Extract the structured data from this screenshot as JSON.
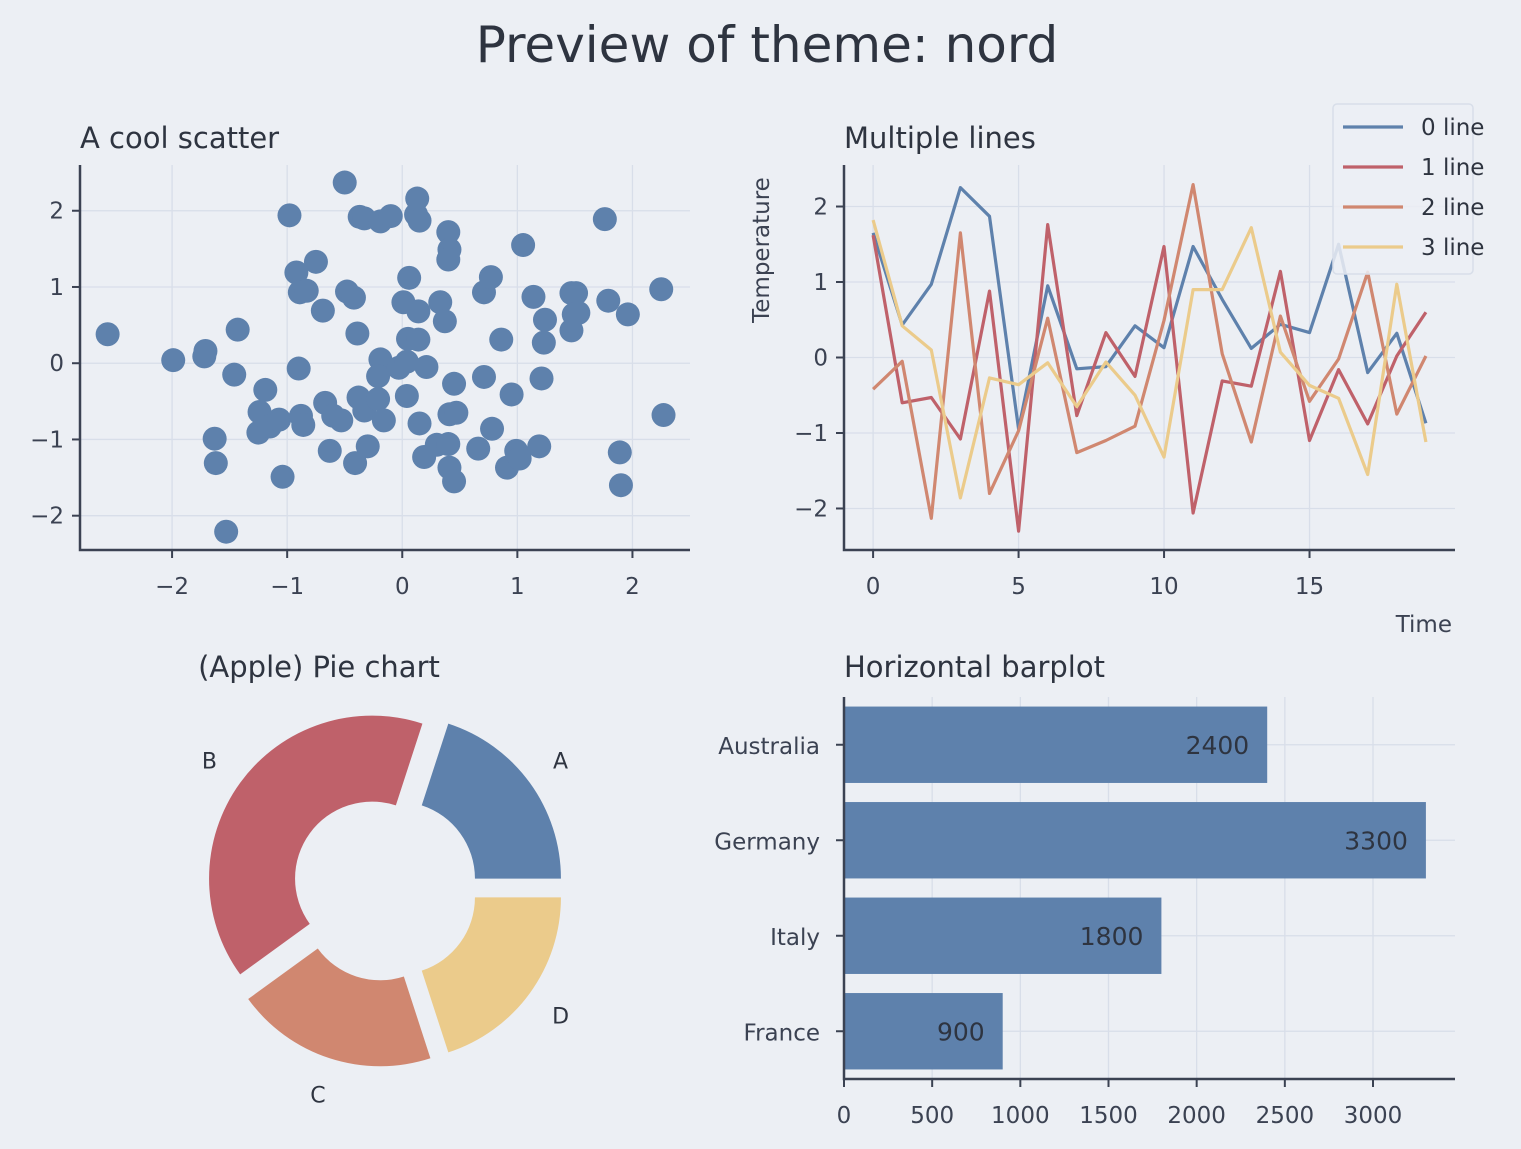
{
  "figure": {
    "title": "Preview of theme: nord"
  },
  "colors": {
    "background": "#eceff4",
    "text": "#2e3440",
    "grid": "#d8dee9",
    "series": [
      "#5e81ac",
      "#bf616a",
      "#d08770",
      "#ebcb8b"
    ]
  },
  "chart_data": [
    {
      "type": "scatter",
      "title": "A cool scatter",
      "xlabel": "",
      "ylabel": "",
      "xlim": [
        -2.8,
        2.5
      ],
      "ylim": [
        -2.45,
        2.6
      ],
      "xticks": [
        -2,
        -1,
        0,
        1,
        2
      ],
      "yticks": [
        -2,
        -1,
        0,
        1,
        2
      ],
      "grid": true,
      "points": [
        [
          -2.56,
          0.38
        ],
        [
          -1.99,
          0.04
        ],
        [
          -1.72,
          0.09
        ],
        [
          -1.71,
          0.16
        ],
        [
          -1.43,
          0.44
        ],
        [
          -1.46,
          -0.15
        ],
        [
          -1.63,
          -0.99
        ],
        [
          -1.62,
          -1.31
        ],
        [
          -1.53,
          -2.21
        ],
        [
          -1.04,
          -1.49
        ],
        [
          -1.19,
          -0.35
        ],
        [
          -1.24,
          -0.64
        ],
        [
          -1.25,
          -0.91
        ],
        [
          -1.15,
          -0.83
        ],
        [
          -1.07,
          -0.74
        ],
        [
          -0.98,
          1.94
        ],
        [
          -0.92,
          1.19
        ],
        [
          -0.89,
          0.93
        ],
        [
          -0.83,
          0.95
        ],
        [
          -0.75,
          1.33
        ],
        [
          -0.69,
          0.69
        ],
        [
          -0.9,
          -0.07
        ],
        [
          -0.88,
          -0.69
        ],
        [
          -0.86,
          -0.81
        ],
        [
          -0.67,
          -0.52
        ],
        [
          -0.6,
          -0.69
        ],
        [
          -0.53,
          -0.75
        ],
        [
          -0.63,
          -1.15
        ],
        [
          -0.5,
          2.37
        ],
        [
          -0.48,
          0.94
        ],
        [
          -0.42,
          0.86
        ],
        [
          -0.39,
          0.39
        ],
        [
          -0.37,
          1.92
        ],
        [
          -0.33,
          1.9
        ],
        [
          -0.19,
          1.86
        ],
        [
          -0.1,
          1.93
        ],
        [
          0.13,
          2.16
        ],
        [
          0.12,
          1.95
        ],
        [
          0.15,
          1.87
        ],
        [
          0.4,
          1.72
        ],
        [
          0.41,
          1.49
        ],
        [
          0.4,
          1.36
        ],
        [
          0.06,
          1.12
        ],
        [
          0.01,
          0.8
        ],
        [
          0.14,
          0.68
        ],
        [
          0.33,
          0.8
        ],
        [
          0.37,
          0.55
        ],
        [
          0.05,
          0.32
        ],
        [
          0.14,
          0.31
        ],
        [
          -0.19,
          0.05
        ],
        [
          -0.21,
          -0.17
        ],
        [
          -0.03,
          -0.06
        ],
        [
          0.04,
          0.02
        ],
        [
          0.21,
          -0.05
        ],
        [
          0.45,
          -0.27
        ],
        [
          -0.38,
          -0.45
        ],
        [
          -0.33,
          -0.62
        ],
        [
          -0.21,
          -0.47
        ],
        [
          -0.16,
          -0.75
        ],
        [
          -0.3,
          -1.09
        ],
        [
          -0.41,
          -1.31
        ],
        [
          0.04,
          -0.43
        ],
        [
          0.15,
          -0.79
        ],
        [
          0.19,
          -1.23
        ],
        [
          0.3,
          -1.07
        ],
        [
          0.4,
          -1.06
        ],
        [
          0.41,
          -1.37
        ],
        [
          0.45,
          -1.55
        ],
        [
          0.41,
          -0.67
        ],
        [
          0.47,
          -0.65
        ],
        [
          0.71,
          -0.18
        ],
        [
          0.71,
          0.93
        ],
        [
          0.77,
          1.13
        ],
        [
          0.86,
          0.31
        ],
        [
          0.78,
          -0.86
        ],
        [
          0.66,
          -1.12
        ],
        [
          0.95,
          -0.41
        ],
        [
          0.91,
          -1.37
        ],
        [
          0.99,
          -1.15
        ],
        [
          1.02,
          -1.25
        ],
        [
          1.05,
          1.55
        ],
        [
          1.14,
          0.87
        ],
        [
          1.24,
          0.57
        ],
        [
          1.23,
          0.27
        ],
        [
          1.21,
          -0.2
        ],
        [
          1.19,
          -1.09
        ],
        [
          1.47,
          0.92
        ],
        [
          1.51,
          0.92
        ],
        [
          1.49,
          0.64
        ],
        [
          1.53,
          0.66
        ],
        [
          1.47,
          0.43
        ],
        [
          1.76,
          1.89
        ],
        [
          1.79,
          0.82
        ],
        [
          1.96,
          0.64
        ],
        [
          1.89,
          -1.17
        ],
        [
          1.9,
          -1.6
        ],
        [
          2.25,
          0.97
        ],
        [
          2.27,
          -0.68
        ]
      ]
    },
    {
      "type": "line",
      "title": "Multiple lines",
      "xlabel": "Time",
      "ylabel": "Temperature",
      "xlim": [
        -1,
        20
      ],
      "ylim": [
        -2.55,
        2.55
      ],
      "xticks": [
        0,
        5,
        10,
        15
      ],
      "yticks": [
        -2,
        -1,
        0,
        1,
        2
      ],
      "grid": true,
      "legend": "top-right",
      "x": [
        0,
        1,
        2,
        3,
        4,
        5,
        6,
        7,
        8,
        9,
        10,
        11,
        12,
        13,
        14,
        15,
        16,
        17,
        18,
        19
      ],
      "series": [
        {
          "name": "0 line",
          "values": [
            1.65,
            0.43,
            0.97,
            2.25,
            1.87,
            -0.95,
            0.95,
            -0.15,
            -0.12,
            0.42,
            0.13,
            1.47,
            0.77,
            0.12,
            0.44,
            0.33,
            1.5,
            -0.2,
            0.32,
            -0.87
          ]
        },
        {
          "name": "1 line",
          "values": [
            1.62,
            -0.6,
            -0.53,
            -1.08,
            0.88,
            -2.3,
            1.76,
            -0.77,
            0.33,
            -0.25,
            1.47,
            -2.06,
            -0.31,
            -0.38,
            1.14,
            -1.1,
            -0.16,
            -0.88,
            0.02,
            0.6
          ]
        },
        {
          "name": "2 line",
          "values": [
            -0.42,
            -0.05,
            -2.13,
            1.65,
            -1.8,
            -0.97,
            0.52,
            -1.26,
            -1.1,
            -0.91,
            0.49,
            2.29,
            0.05,
            -1.12,
            0.55,
            -0.58,
            -0.02,
            1.13,
            -0.75,
            0.02
          ]
        },
        {
          "name": "3 line",
          "values": [
            1.82,
            0.42,
            0.1,
            -1.86,
            -0.27,
            -0.36,
            -0.07,
            -0.65,
            -0.06,
            -0.5,
            -1.32,
            0.9,
            0.9,
            1.72,
            0.07,
            -0.37,
            -0.54,
            -1.55,
            0.97,
            -1.12
          ]
        }
      ]
    },
    {
      "type": "pie",
      "title": "(Apple) Pie chart",
      "labels": [
        "A",
        "B",
        "C",
        "D"
      ],
      "values": [
        20,
        40,
        20,
        20
      ],
      "explode": true,
      "donut": true
    },
    {
      "type": "bar",
      "orientation": "horizontal",
      "title": "Horizontal barplot",
      "categories": [
        "Australia",
        "Germany",
        "Italy",
        "France"
      ],
      "values": [
        2400,
        3300,
        1800,
        900
      ],
      "xlim": [
        0,
        3465
      ],
      "xticks": [
        0,
        500,
        1000,
        1500,
        2000,
        2500,
        3000
      ],
      "grid": true
    }
  ]
}
